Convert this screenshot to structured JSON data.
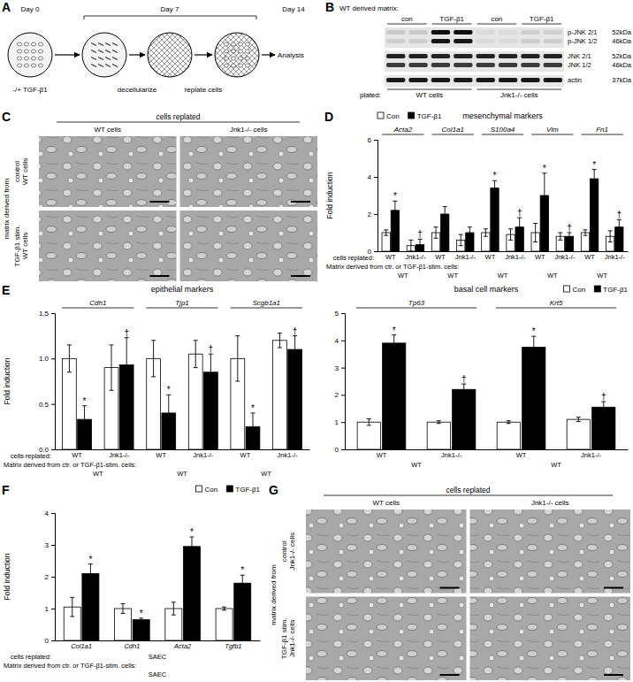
{
  "chart_data": [
    {
      "panel": "D",
      "type": "bar",
      "title": "mesenchymal markers",
      "y_label": "Fold induction",
      "category_groups": [
        "Acta2",
        "Col1a1",
        "S100a4",
        "Vim",
        "Fn1"
      ],
      "categories": [
        "WT",
        "Jnk1-/-",
        "WT",
        "Jnk1-/-",
        "WT",
        "Jnk1-/-",
        "WT",
        "Jnk1-/-",
        "WT",
        "Jnk1-/-"
      ],
      "cells_label": "cells replated:",
      "matrix_label": "Matrix derived from ctr. or TGF-β1-stim. cells:",
      "matrix": [
        "WT",
        "WT",
        "WT",
        "WT",
        "WT"
      ],
      "series": [
        {
          "name": "Con",
          "color": "#ffffff",
          "values": [
            1.0,
            0.3,
            1.0,
            0.6,
            1.0,
            0.9,
            1.0,
            0.8,
            1.0,
            0.8
          ],
          "errors": [
            0.15,
            0.3,
            0.3,
            0.3,
            0.2,
            0.3,
            0.5,
            0.2,
            0.15,
            0.3
          ]
        },
        {
          "name": "TGF-β1",
          "color": "#000000",
          "values": [
            2.2,
            0.35,
            2.0,
            1.0,
            3.4,
            1.3,
            3.0,
            0.8,
            3.9,
            1.3
          ],
          "errors": [
            0.5,
            0.3,
            0.4,
            0.3,
            0.4,
            0.5,
            1.2,
            0.2,
            0.5,
            0.4
          ],
          "annotations": [
            "*",
            "†",
            null,
            null,
            "*",
            "†",
            "*",
            "†",
            "*",
            "†"
          ]
        }
      ],
      "ylim": [
        0,
        6
      ],
      "yticks": [
        0,
        2,
        4,
        6
      ],
      "legend": "top-left"
    },
    {
      "panel": "E",
      "type": "bar",
      "title": "epithelial markers",
      "y_label": "Fold induction",
      "category_groups": [
        "Cdh1",
        "Tjp1",
        "Scgb1a1"
      ],
      "categories": [
        "WT",
        "Jnk1-/-",
        "WT",
        "Jnk1-/-",
        "WT",
        "Jnk1-/-"
      ],
      "cells_label": "cells replated:",
      "matrix_label": "Matrix derived from ctr. or TGF-β1-stim. cells:",
      "matrix": [
        "WT",
        "WT",
        "WT"
      ],
      "series": [
        {
          "color": "#ffffff",
          "values": [
            1.0,
            0.9,
            1.0,
            1.05,
            1.0,
            1.2
          ],
          "errors": [
            0.15,
            0.25,
            0.2,
            0.15,
            0.25,
            0.08
          ]
        },
        {
          "color": "#000000",
          "values": [
            0.33,
            0.93,
            0.4,
            0.85,
            0.25,
            1.1
          ],
          "errors": [
            0.15,
            0.3,
            0.2,
            0.2,
            0.15,
            0.15
          ],
          "annotations": [
            "*",
            "†",
            "*",
            "†",
            "*",
            "†"
          ]
        }
      ],
      "ylim": [
        0,
        1.5
      ],
      "yticks": [
        {
          "value": 0,
          "label": "0.0"
        },
        {
          "value": 0.5,
          "label": "0.5"
        },
        {
          "value": 1,
          "label": "1.0"
        },
        {
          "value": 1.5,
          "label": "1.5"
        }
      ]
    },
    {
      "type": "bar",
      "title": "basal cell markers",
      "category_groups": [
        "Tp63",
        "Krt5"
      ],
      "categories": [
        "WT",
        "Jnk1-/-",
        "WT",
        "Jnk1-/-"
      ],
      "matrix": [
        "WT",
        "WT"
      ],
      "series": [
        {
          "name": "Con",
          "color": "#ffffff",
          "values": [
            1.0,
            1.0,
            1.0,
            1.1
          ],
          "errors": [
            0.12,
            0.05,
            0.05,
            0.08
          ]
        },
        {
          "name": "TGF-β1",
          "color": "#000000",
          "values": [
            3.9,
            2.2,
            3.75,
            1.55
          ],
          "errors": [
            0.3,
            0.2,
            0.4,
            0.2
          ],
          "annotations": [
            "*",
            "†",
            "*",
            "†"
          ]
        }
      ],
      "ylim": [
        0,
        5
      ],
      "yticks": [
        0,
        1,
        2,
        3,
        4,
        5
      ],
      "legend": "top-right"
    },
    {
      "panel": "F",
      "type": "bar",
      "y_label": "Fold induction",
      "categories": [
        "Col1a1",
        "Cdh1",
        "Acta2",
        "Tgfb1"
      ],
      "cells_label": "cells replated:",
      "cells": [
        "SAEC"
      ],
      "matrix_label": "Matrix derived from ctr. or TGF-β1-stim. cells:",
      "matrix": [
        "SAEC"
      ],
      "series": [
        {
          "name": "Con",
          "color": "#ffffff",
          "values": [
            1.05,
            1.0,
            1.0,
            1.0
          ],
          "errors": [
            0.3,
            0.15,
            0.2,
            0.05
          ]
        },
        {
          "name": "TGF-β1",
          "color": "#000000",
          "values": [
            2.1,
            0.65,
            2.95,
            1.8
          ],
          "errors": [
            0.3,
            0.05,
            0.3,
            0.25
          ],
          "annotations": [
            "*",
            "*",
            "*",
            "*"
          ]
        }
      ],
      "ylim": [
        0,
        4
      ],
      "yticks": [
        0,
        1,
        2,
        3,
        4
      ],
      "legend": "top-right"
    }
  ],
  "panel_A": {
    "panel": "A",
    "day_labels": [
      "Day 0",
      "Day 7",
      "Day 14"
    ],
    "treatment": "-/+ TGF-β1",
    "steps": [
      "decellularize",
      "replate cells"
    ],
    "end": "Analysis"
  },
  "panel_B": {
    "panel": "B",
    "matrix_label": "WT derived matrix:",
    "conditions": [
      "con",
      "TGF-β1",
      "con",
      "TGF-β1"
    ],
    "rows": [
      {
        "labels": [
          "p-JNK 2/1",
          "p-JNK 1/2"
        ],
        "kda": [
          "52kDa",
          "46kDa"
        ],
        "intensity": [
          [
            0.12,
            0.12,
            0.95,
            0.95,
            0.05,
            0.05,
            0.1,
            0.1
          ],
          [
            0.1,
            0.1,
            0.9,
            0.9,
            0.05,
            0.05,
            0.1,
            0.1
          ]
        ]
      },
      {
        "labels": [
          "JNK 2/1",
          "JNK 1/2"
        ],
        "kda": [
          "52kDa",
          "46kDa"
        ],
        "intensity": [
          [
            0.85,
            0.85,
            0.85,
            0.85,
            0.85,
            0.85,
            0.85,
            0.85
          ],
          [
            0.75,
            0.75,
            0.75,
            0.75,
            0.75,
            0.75,
            0.75,
            0.75
          ]
        ]
      },
      {
        "labels": [
          "actin"
        ],
        "kda": [
          "37kDa"
        ],
        "intensity": [
          [
            0.9,
            0.9,
            0.9,
            0.9,
            0.9,
            0.9,
            0.9,
            0.9
          ]
        ]
      }
    ],
    "plated_label": "plated:",
    "plated": [
      "WT cells",
      "Jnk1-/- cells"
    ]
  },
  "panel_C": {
    "panel": "C",
    "header": "cells replated",
    "columns": [
      "WT cells",
      "Jnk1-/- cells"
    ],
    "side_label": "matrix derived from",
    "rows": [
      [
        "control",
        "WT cells"
      ],
      [
        "TGF-β1 stim.",
        "WT cells"
      ]
    ]
  },
  "panel_G": {
    "panel": "G",
    "header": "cells replated",
    "columns": [
      "WT cells",
      "Jnk1-/- cells"
    ],
    "side_label": "matrix derived from",
    "rows": [
      [
        "control",
        "Jnk1-/- cells"
      ],
      [
        "TGF-β1 stim.",
        "Jnk1-/- cells"
      ]
    ]
  }
}
